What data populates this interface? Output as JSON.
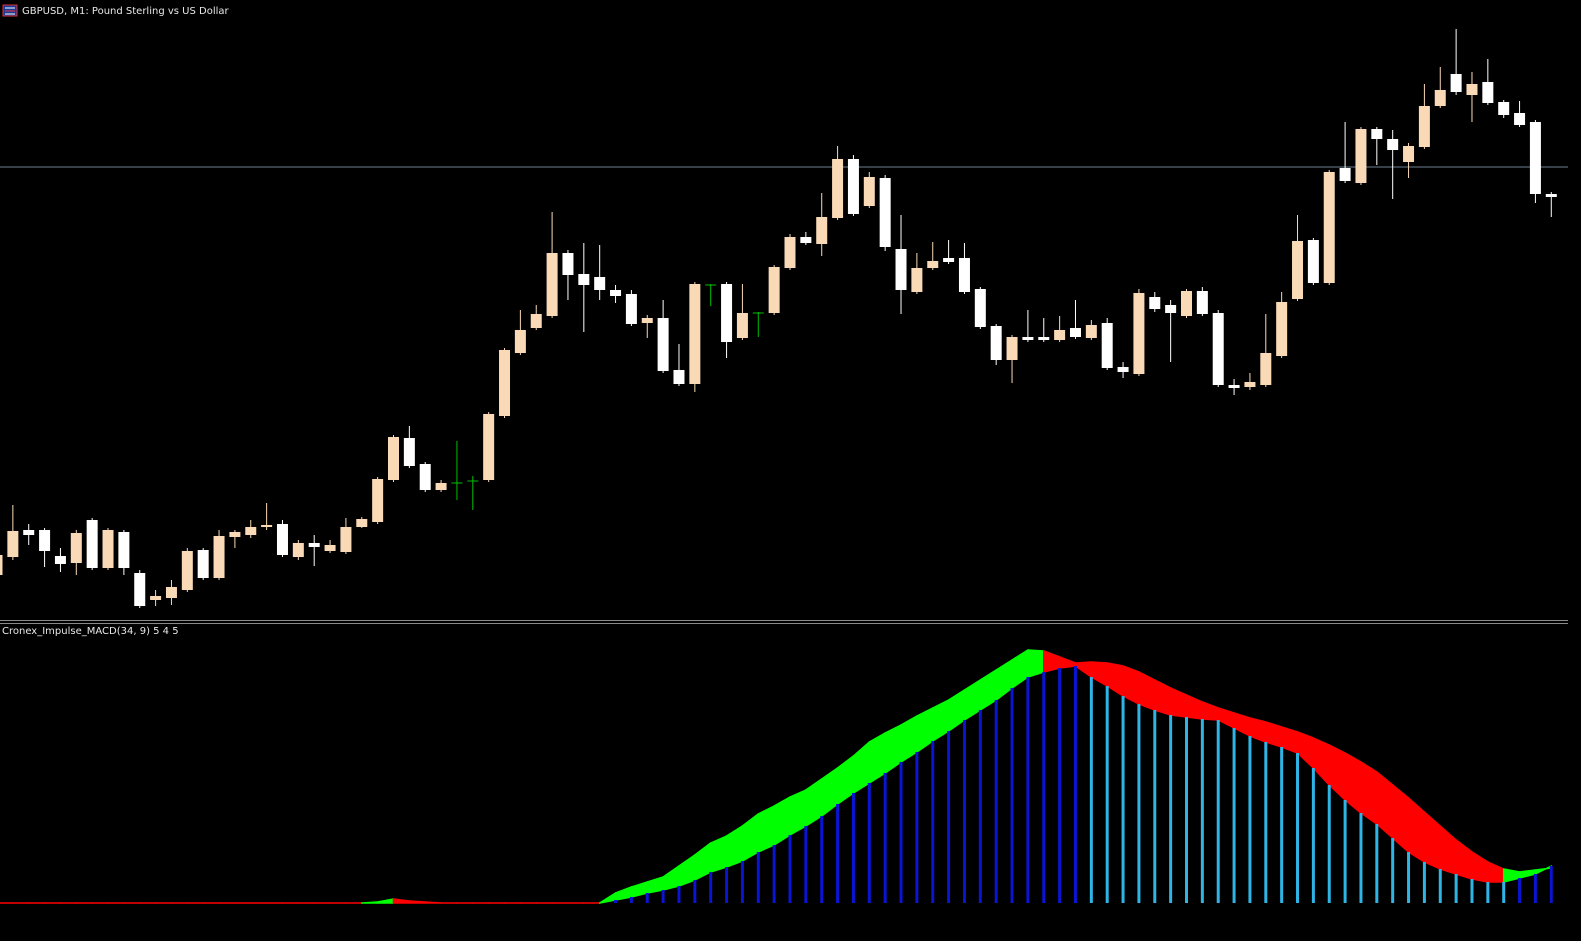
{
  "chart_data": [
    {
      "type": "candlestick",
      "title": "GBPUSD, M1:  Pound Sterling vs US Dollar",
      "ylim": [
        0,
        620
      ],
      "hline": 453,
      "hline_color": "#6e7f90",
      "colors": {
        "bull": "#f9d9b6",
        "bear": "#ffffff",
        "doji": "#00c000"
      },
      "open": [
        45,
        63,
        90,
        90,
        64,
        57,
        100,
        52,
        88,
        47,
        20,
        22,
        30,
        70,
        42,
        83,
        85,
        93,
        96,
        63,
        77,
        69,
        68,
        93,
        98,
        140,
        182,
        156,
        130,
        137,
        139,
        140,
        204,
        267,
        292,
        304,
        367,
        346,
        343,
        330,
        326,
        297,
        302,
        250,
        236,
        335,
        336,
        282,
        307,
        307,
        352,
        383,
        376,
        402,
        461,
        414,
        442,
        371,
        328,
        352,
        362,
        362,
        331,
        294,
        260,
        283,
        283,
        280,
        292,
        282,
        297,
        253,
        246,
        323,
        315,
        304,
        329,
        307,
        235,
        233,
        235,
        264,
        321,
        380,
        337,
        452,
        437,
        491,
        481,
        458,
        473,
        514,
        546,
        525,
        538,
        518,
        507,
        498,
        426
      ],
      "high": [
        70,
        115,
        96,
        92,
        72,
        90,
        102,
        92,
        90,
        50,
        30,
        40,
        72,
        72,
        90,
        90,
        100,
        117,
        100,
        80,
        85,
        80,
        102,
        103,
        143,
        185,
        194,
        158,
        140,
        179,
        144,
        208,
        272,
        310,
        315,
        408,
        370,
        377,
        375,
        335,
        330,
        305,
        320,
        276,
        338,
        336,
        338,
        336,
        308,
        355,
        386,
        388,
        427,
        474,
        465,
        448,
        445,
        405,
        367,
        378,
        380,
        377,
        333,
        296,
        285,
        310,
        302,
        304,
        320,
        300,
        302,
        258,
        331,
        328,
        320,
        331,
        333,
        310,
        241,
        247,
        306,
        328,
        405,
        382,
        450,
        498,
        493,
        493,
        490,
        477,
        536,
        553,
        591,
        548,
        561,
        520,
        519,
        500,
        428
      ],
      "low": [
        42,
        60,
        75,
        53,
        48,
        45,
        50,
        50,
        45,
        12,
        14,
        15,
        28,
        40,
        40,
        72,
        82,
        90,
        63,
        60,
        54,
        67,
        66,
        92,
        96,
        138,
        152,
        128,
        128,
        120,
        110,
        138,
        202,
        265,
        290,
        302,
        320,
        288,
        320,
        317,
        294,
        282,
        247,
        234,
        228,
        314,
        262,
        280,
        283,
        305,
        350,
        375,
        364,
        400,
        404,
        412,
        369,
        306,
        326,
        350,
        356,
        326,
        291,
        255,
        237,
        278,
        278,
        278,
        281,
        280,
        250,
        242,
        244,
        308,
        258,
        302,
        304,
        233,
        225,
        230,
        233,
        262,
        319,
        335,
        335,
        437,
        435,
        455,
        421,
        442,
        471,
        512,
        525,
        498,
        515,
        502,
        493,
        417,
        403
      ],
      "close": [
        65,
        89,
        85,
        69,
        56,
        87,
        52,
        90,
        52,
        14,
        24,
        33,
        69,
        42,
        84,
        88,
        93,
        95,
        65,
        77,
        73,
        75,
        93,
        101,
        141,
        183,
        154,
        130,
        137,
        137,
        139,
        206,
        270,
        290,
        306,
        367,
        345,
        335,
        330,
        324,
        296,
        302,
        249,
        236,
        336,
        335,
        278,
        307,
        307,
        353,
        383,
        377,
        403,
        461,
        406,
        443,
        373,
        330,
        352,
        359,
        358,
        328,
        293,
        260,
        283,
        280,
        280,
        290,
        283,
        295,
        252,
        248,
        327,
        311,
        307,
        329,
        306,
        235,
        232,
        238,
        267,
        318,
        379,
        337,
        448,
        439,
        491,
        481,
        470,
        474,
        514,
        530,
        528,
        536,
        517,
        505,
        495,
        426,
        423
      ]
    },
    {
      "type": "impulse_macd",
      "title": "Cronex_Impulse_MACD(34, 9) 5 4 5",
      "ylim": [
        -29,
        279
      ],
      "colors": {
        "hist_up": "#0a14d2",
        "hist_down": "#2fb4e6",
        "fill_up": "#00ff00",
        "fill_down": "#ff0000"
      },
      "histogram": [
        null,
        null,
        null,
        null,
        null,
        null,
        null,
        null,
        null,
        null,
        null,
        null,
        null,
        null,
        null,
        null,
        null,
        null,
        null,
        null,
        null,
        null,
        null,
        null,
        null,
        null,
        null,
        null,
        null,
        null,
        null,
        null,
        null,
        null,
        null,
        null,
        null,
        null,
        0,
        3,
        6,
        10,
        13,
        17,
        23,
        31,
        36,
        42,
        51,
        58,
        68,
        77,
        87,
        99,
        110,
        120,
        130,
        141,
        151,
        162,
        172,
        183,
        193,
        203,
        215,
        226,
        231,
        235,
        237,
        226,
        217,
        207,
        199,
        193,
        188,
        186,
        184,
        183,
        175,
        167,
        161,
        156,
        150,
        135,
        118,
        103,
        90,
        79,
        65,
        51,
        41,
        34,
        29,
        24,
        21,
        21,
        25,
        29,
        37
      ],
      "signal": [
        0,
        0,
        0,
        0,
        0,
        0,
        0,
        0,
        0,
        0,
        0,
        0,
        0,
        0,
        0,
        0,
        0,
        0,
        0,
        0,
        0,
        0,
        0,
        0,
        1,
        4,
        2,
        1,
        0,
        0,
        0,
        0,
        0,
        0,
        0,
        0,
        0,
        0,
        0,
        10,
        16,
        21,
        26,
        37,
        48,
        60,
        67,
        77,
        89,
        97,
        106,
        113,
        124,
        135,
        147,
        161,
        170,
        178,
        187,
        195,
        203,
        213,
        223,
        233,
        243,
        253,
        252,
        246,
        240,
        241,
        240,
        237,
        231,
        223,
        215,
        208,
        201,
        195,
        190,
        185,
        181,
        176,
        171,
        165,
        158,
        150,
        141,
        131,
        118,
        105,
        91,
        77,
        63,
        51,
        41,
        34,
        31,
        33,
        35
      ]
    }
  ]
}
